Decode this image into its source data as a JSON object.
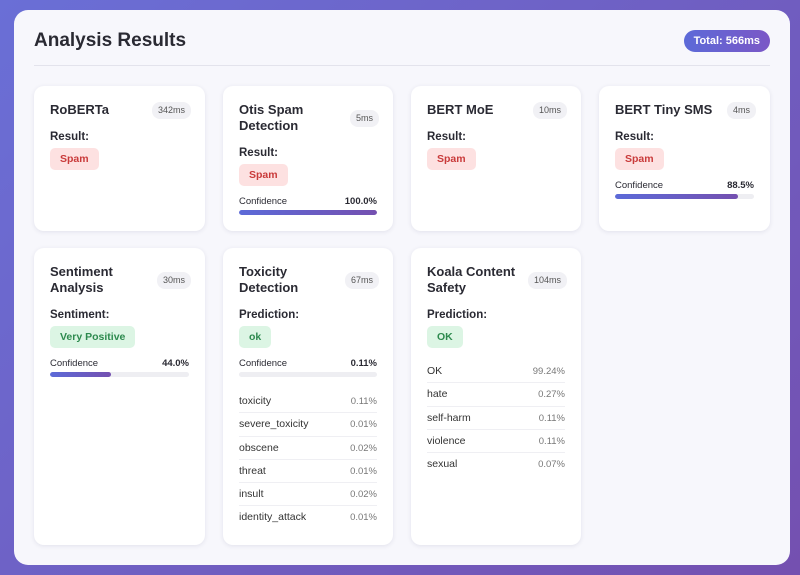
{
  "header": {
    "title": "Analysis Results",
    "total": "Total: 566ms"
  },
  "colors": {
    "spam_bg": "#fde1e1",
    "spam_text": "#c93a3a",
    "ok_bg": "#dcf5e4",
    "ok_text": "#2d8a4e",
    "accent_start": "#5c6ad8",
    "accent_end": "#7450b0"
  },
  "cards": {
    "roberta": {
      "name": "RoBERTa",
      "time": "342ms",
      "result_label": "Result:",
      "result": "Spam"
    },
    "otis": {
      "name": "Otis Spam Detection",
      "time": "5ms",
      "result_label": "Result:",
      "result": "Spam",
      "confidence_label": "Confidence",
      "confidence": "100.0%",
      "confidence_fraction": 1.0
    },
    "bert_moe": {
      "name": "BERT MoE",
      "time": "10ms",
      "result_label": "Result:",
      "result": "Spam"
    },
    "bert_tiny": {
      "name": "BERT Tiny SMS",
      "time": "4ms",
      "result_label": "Result:",
      "result": "Spam",
      "confidence_label": "Confidence",
      "confidence": "88.5%",
      "confidence_fraction": 0.885
    },
    "sentiment": {
      "name": "Sentiment Analysis",
      "time": "30ms",
      "result_label": "Sentiment:",
      "result": "Very Positive",
      "confidence_label": "Confidence",
      "confidence": "44.0%",
      "confidence_fraction": 0.44
    },
    "toxicity": {
      "name": "Toxicity Detection",
      "time": "67ms",
      "result_label": "Prediction:",
      "result": "ok",
      "confidence_label": "Confidence",
      "confidence": "0.11%",
      "confidence_fraction": 0.0011,
      "scores": [
        {
          "label": "toxicity",
          "value": "0.11%"
        },
        {
          "label": "severe_toxicity",
          "value": "0.01%"
        },
        {
          "label": "obscene",
          "value": "0.02%"
        },
        {
          "label": "threat",
          "value": "0.01%"
        },
        {
          "label": "insult",
          "value": "0.02%"
        },
        {
          "label": "identity_attack",
          "value": "0.01%"
        }
      ]
    },
    "koala": {
      "name": "Koala Content Safety",
      "time": "104ms",
      "result_label": "Prediction:",
      "result": "OK",
      "scores": [
        {
          "label": "OK",
          "value": "99.24%"
        },
        {
          "label": "hate",
          "value": "0.27%"
        },
        {
          "label": "self-harm",
          "value": "0.11%"
        },
        {
          "label": "violence",
          "value": "0.11%"
        },
        {
          "label": "sexual",
          "value": "0.07%"
        }
      ]
    }
  }
}
